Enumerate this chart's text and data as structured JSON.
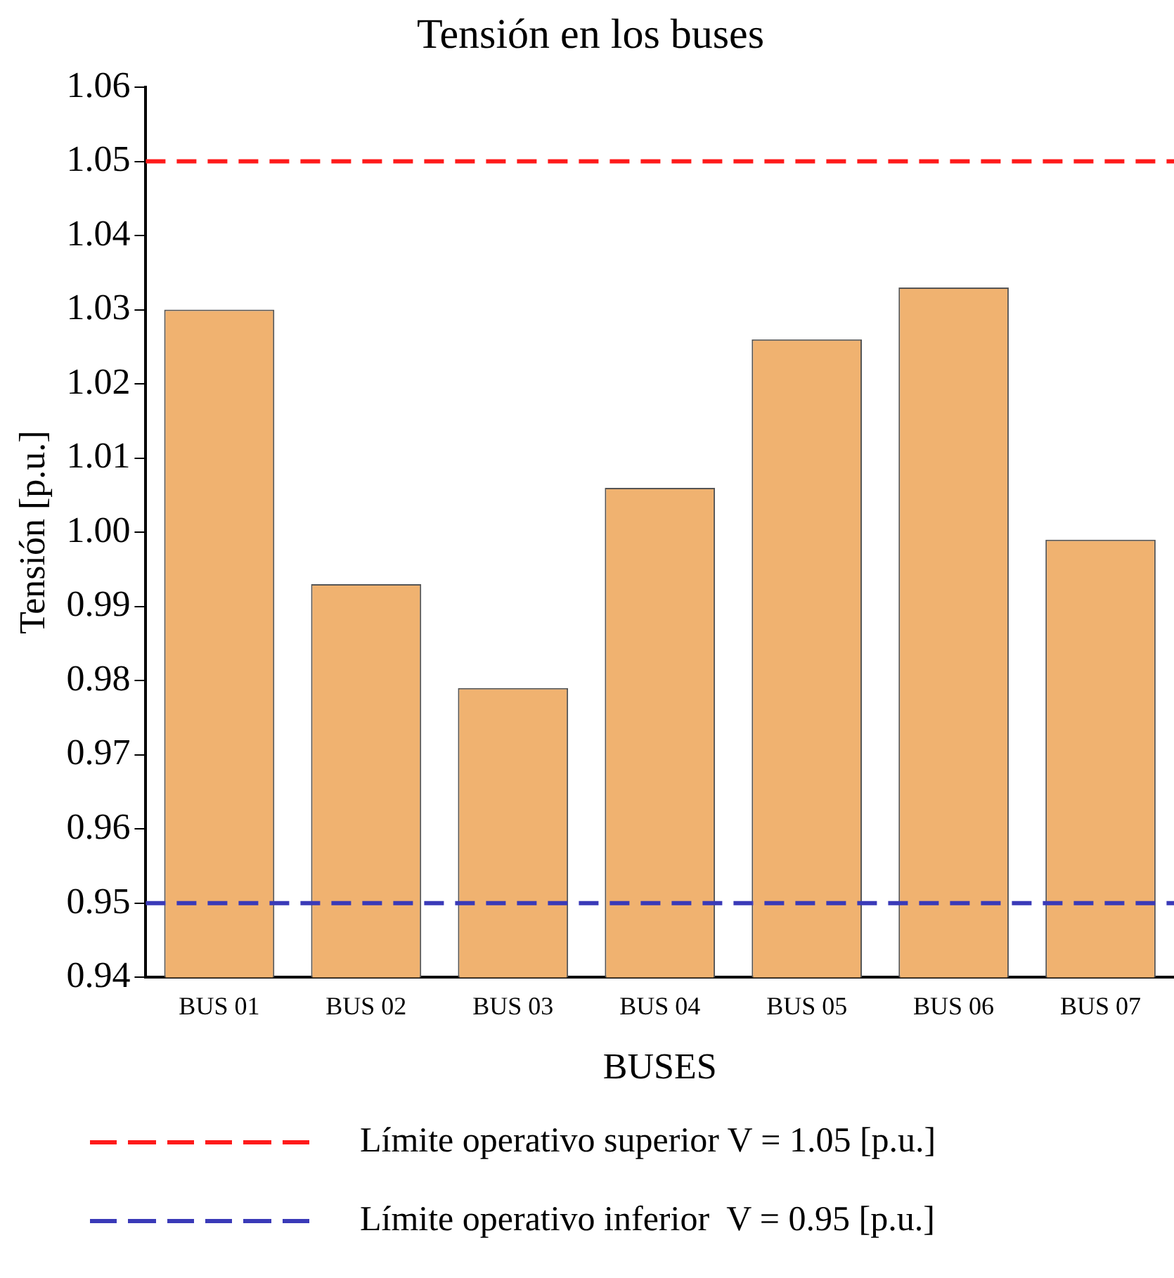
{
  "chart_data": {
    "type": "bar",
    "title": "Tensión en los buses",
    "xlabel": "BUSES",
    "ylabel": "Tensión [p.u.]",
    "categories": [
      "BUS 01",
      "BUS 02",
      "BUS 03",
      "BUS 04",
      "BUS 05",
      "BUS 06",
      "BUS 07"
    ],
    "values": [
      1.03,
      0.993,
      0.979,
      1.006,
      1.026,
      1.033,
      0.999
    ],
    "color": "#f0b270",
    "ylim": [
      0.94,
      1.06
    ],
    "yticks": [
      {
        "value": 0.94,
        "label": "0.94"
      },
      {
        "value": 0.95,
        "label": "0.95"
      },
      {
        "value": 0.96,
        "label": "0.96"
      },
      {
        "value": 0.97,
        "label": "0.97"
      },
      {
        "value": 0.98,
        "label": "0.98"
      },
      {
        "value": 0.99,
        "label": "0.99"
      },
      {
        "value": 1.0,
        "label": "1.00"
      },
      {
        "value": 1.01,
        "label": "1.01"
      },
      {
        "value": 1.02,
        "label": "1.02"
      },
      {
        "value": 1.03,
        "label": "1.03"
      },
      {
        "value": 1.04,
        "label": "1.04"
      },
      {
        "value": 1.05,
        "label": "1.05"
      },
      {
        "value": 1.06,
        "label": "1.06"
      }
    ],
    "ref_lines": [
      {
        "axis": "y",
        "value": 1.05,
        "label": "Límite operativo superior V = 1.05 [p.u.]",
        "color": "#ff1a1a",
        "line_style": "dashed"
      },
      {
        "axis": "y",
        "value": 0.95,
        "label": "Límite operativo inferior  V = 0.95 [p.u.]",
        "color": "#3a3ab8",
        "line_style": "dashed"
      }
    ],
    "grid": false,
    "legend": "bottom"
  }
}
